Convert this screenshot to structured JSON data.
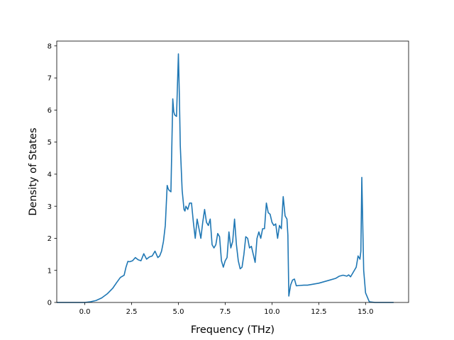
{
  "chart_data": {
    "type": "line",
    "title": "",
    "xlabel": "Frequency (THz)",
    "ylabel": "Density of States",
    "xlim": [
      -1.5,
      17.3
    ],
    "ylim": [
      0,
      8.15
    ],
    "x_ticks": [
      0.0,
      2.5,
      5.0,
      7.5,
      10.0,
      12.5,
      15.0
    ],
    "x_tick_labels": [
      "0.0",
      "2.5",
      "5.0",
      "7.5",
      "10.0",
      "12.5",
      "15.0"
    ],
    "y_ticks": [
      0,
      1,
      2,
      3,
      4,
      5,
      6,
      7,
      8
    ],
    "y_tick_labels": [
      "0",
      "1",
      "2",
      "3",
      "4",
      "5",
      "6",
      "7",
      "8"
    ],
    "grid": false,
    "line_color": "#1f77b4",
    "series": [
      {
        "x": [
          -1.5,
          -1.0,
          -0.5,
          0.0,
          0.3,
          0.6,
          0.9,
          1.2,
          1.5,
          1.7,
          1.9,
          2.1,
          2.2,
          2.3,
          2.4,
          2.55,
          2.7,
          2.85,
          3.0,
          3.15,
          3.3,
          3.45,
          3.6,
          3.75,
          3.9,
          4.0,
          4.1,
          4.2,
          4.3,
          4.4,
          4.45,
          4.5,
          4.6,
          4.7,
          4.75,
          4.8,
          4.9,
          5.0,
          5.05,
          5.1,
          5.15,
          5.2,
          5.3,
          5.35,
          5.4,
          5.5,
          5.6,
          5.7,
          5.8,
          5.9,
          6.0,
          6.1,
          6.2,
          6.3,
          6.4,
          6.5,
          6.6,
          6.7,
          6.8,
          6.9,
          7.0,
          7.1,
          7.2,
          7.3,
          7.4,
          7.5,
          7.6,
          7.7,
          7.8,
          7.9,
          8.0,
          8.1,
          8.2,
          8.3,
          8.4,
          8.5,
          8.6,
          8.7,
          8.8,
          8.9,
          9.0,
          9.1,
          9.2,
          9.3,
          9.4,
          9.5,
          9.6,
          9.7,
          9.8,
          9.9,
          10.0,
          10.1,
          10.2,
          10.3,
          10.4,
          10.5,
          10.6,
          10.7,
          10.8,
          10.85,
          10.9,
          11.0,
          11.1,
          11.2,
          11.3,
          11.5,
          11.7,
          11.9,
          12.2,
          12.5,
          12.8,
          13.1,
          13.4,
          13.6,
          13.8,
          14.0,
          14.1,
          14.2,
          14.3,
          14.4,
          14.5,
          14.6,
          14.7,
          14.75,
          14.8,
          14.9,
          15.0,
          15.2,
          15.5,
          16.0,
          16.5
        ],
        "y": [
          0,
          0,
          0,
          0,
          0.02,
          0.06,
          0.14,
          0.27,
          0.45,
          0.62,
          0.78,
          0.85,
          1.1,
          1.28,
          1.27,
          1.3,
          1.4,
          1.33,
          1.3,
          1.52,
          1.35,
          1.42,
          1.45,
          1.6,
          1.4,
          1.45,
          1.6,
          1.9,
          2.4,
          3.65,
          3.55,
          3.5,
          3.45,
          6.35,
          5.95,
          5.85,
          5.8,
          7.75,
          6.5,
          4.9,
          4.2,
          3.5,
          2.9,
          2.85,
          3.0,
          2.9,
          3.1,
          3.1,
          2.5,
          2.0,
          2.6,
          2.3,
          2.0,
          2.5,
          2.9,
          2.5,
          2.4,
          2.6,
          1.8,
          1.7,
          1.8,
          2.15,
          2.05,
          1.3,
          1.1,
          1.3,
          1.4,
          2.2,
          1.7,
          1.9,
          2.6,
          1.8,
          1.3,
          1.05,
          1.1,
          1.5,
          2.05,
          2.0,
          1.7,
          1.75,
          1.5,
          1.25,
          2.0,
          2.2,
          2.0,
          2.3,
          2.3,
          3.1,
          2.8,
          2.75,
          2.5,
          2.4,
          2.45,
          2.0,
          2.4,
          2.3,
          3.3,
          2.7,
          2.6,
          2.1,
          0.2,
          0.55,
          0.7,
          0.73,
          0.52,
          0.53,
          0.54,
          0.54,
          0.57,
          0.6,
          0.65,
          0.7,
          0.75,
          0.82,
          0.85,
          0.82,
          0.86,
          0.8,
          0.9,
          1.0,
          1.1,
          1.45,
          1.35,
          1.6,
          3.9,
          1.0,
          0.3,
          0.02,
          0,
          0,
          0
        ]
      }
    ]
  }
}
